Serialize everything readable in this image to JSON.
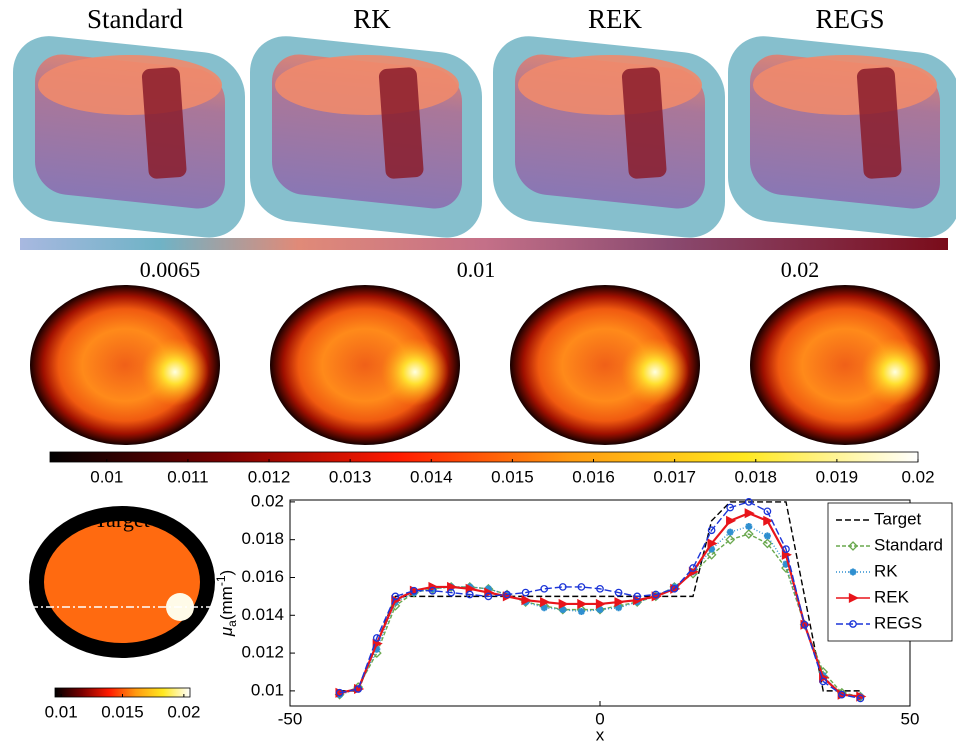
{
  "panel_titles": [
    "Standard",
    "RK",
    "REK",
    "REGS"
  ],
  "colorbar_top": {
    "labels": [
      0.0065,
      0.01,
      0.02
    ]
  },
  "colorbar_mid": {
    "lim": [
      0.0093,
      0.02
    ],
    "ticks": [
      0.01,
      0.011,
      0.012,
      0.013,
      0.014,
      0.015,
      0.016,
      0.017,
      0.018,
      0.019,
      0.02
    ]
  },
  "target": {
    "title": "Target",
    "colorbar": {
      "lim": [
        0.0095,
        0.0205
      ],
      "ticks": [
        0.01,
        0.015,
        0.02
      ]
    }
  },
  "chart_data": {
    "type": "line",
    "x_label": "x",
    "y_label": {
      "symbol": "μ",
      "subscript": "a",
      "unit": "(mm",
      "exponent": "-1",
      "close": ")"
    },
    "xlim": [
      -50,
      50
    ],
    "xticks": [
      -50,
      0,
      50
    ],
    "ylim": [
      0.0092,
      0.0201
    ],
    "yticks": [
      0.01,
      0.012,
      0.014,
      0.016,
      0.018,
      0.02
    ],
    "grid": false,
    "legend": "upper right",
    "x": [
      -42,
      -39,
      -36,
      -33,
      -30,
      -27,
      -24,
      -21,
      -18,
      -15,
      -12,
      -9,
      -6,
      -3,
      0,
      3,
      6,
      9,
      12,
      15,
      18,
      21,
      24,
      27,
      30,
      33,
      36,
      39,
      42
    ],
    "series": [
      {
        "name": "Target",
        "color": "#000000",
        "dash": "6 3",
        "marker": "none",
        "values": [
          0.01,
          0.01,
          0.0125,
          0.015,
          0.015,
          0.015,
          0.015,
          0.015,
          0.015,
          0.015,
          0.015,
          0.015,
          0.015,
          0.015,
          0.015,
          0.015,
          0.015,
          0.015,
          0.015,
          0.015,
          0.019,
          0.02,
          0.02,
          0.02,
          0.02,
          0.015,
          0.01,
          0.01,
          0.01
        ]
      },
      {
        "name": "Standard",
        "color": "#6aa84f",
        "dash": "4 2",
        "marker": "diamond",
        "values": [
          0.0098,
          0.0102,
          0.012,
          0.0145,
          0.0152,
          0.0154,
          0.0155,
          0.0155,
          0.0154,
          0.0151,
          0.0147,
          0.0145,
          0.0143,
          0.0143,
          0.0143,
          0.0145,
          0.0147,
          0.015,
          0.0155,
          0.0162,
          0.0172,
          0.018,
          0.0183,
          0.0178,
          0.0165,
          0.0135,
          0.011,
          0.0099,
          0.0097
        ]
      },
      {
        "name": "RK",
        "color": "#2f8fd0",
        "dash": "1 2",
        "marker": "star",
        "values": [
          0.0098,
          0.0101,
          0.0122,
          0.0147,
          0.0152,
          0.0154,
          0.0155,
          0.0155,
          0.0154,
          0.0151,
          0.0147,
          0.0144,
          0.0143,
          0.0142,
          0.0143,
          0.0144,
          0.0147,
          0.015,
          0.0155,
          0.0163,
          0.0175,
          0.0184,
          0.0187,
          0.0182,
          0.0167,
          0.0135,
          0.0108,
          0.0098,
          0.0097
        ]
      },
      {
        "name": "REK",
        "color": "#e8151b",
        "dash": "none",
        "marker": "triangle",
        "values": [
          0.0099,
          0.0101,
          0.0125,
          0.0148,
          0.0153,
          0.0155,
          0.0155,
          0.0154,
          0.0152,
          0.015,
          0.0148,
          0.0147,
          0.0146,
          0.0146,
          0.0146,
          0.0147,
          0.0148,
          0.015,
          0.0154,
          0.0163,
          0.0178,
          0.019,
          0.0194,
          0.019,
          0.0172,
          0.0135,
          0.0107,
          0.0098,
          0.0097
        ]
      },
      {
        "name": "REGS",
        "color": "#1c35d8",
        "dash": "7 3",
        "marker": "circle",
        "values": [
          0.0099,
          0.0101,
          0.0128,
          0.015,
          0.0153,
          0.0153,
          0.0152,
          0.0151,
          0.015,
          0.0151,
          0.0152,
          0.0154,
          0.0155,
          0.0155,
          0.0154,
          0.0152,
          0.015,
          0.0151,
          0.0154,
          0.0165,
          0.0185,
          0.0197,
          0.02,
          0.0195,
          0.0175,
          0.0135,
          0.0105,
          0.0098,
          0.0096
        ]
      }
    ]
  }
}
